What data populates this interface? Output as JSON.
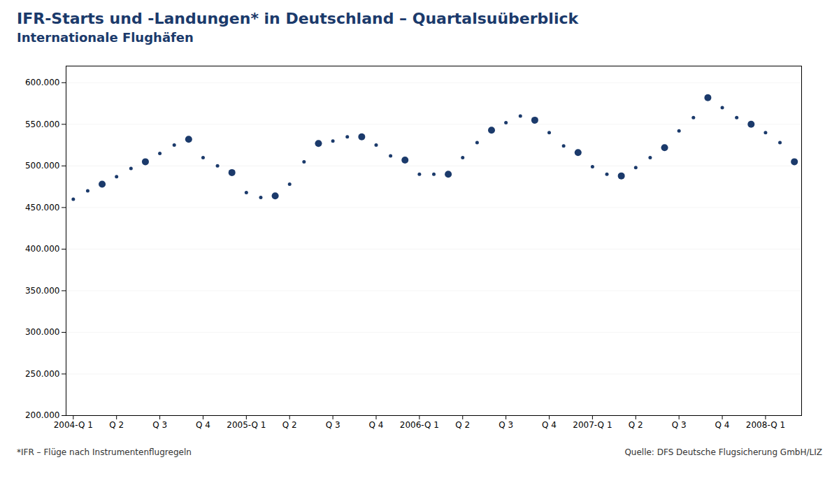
{
  "chart_data": {
    "type": "scatter",
    "title": "IFR-Starts und -Landungen*  in Deutschland – Quartalsuüberblick",
    "subtitle": "Internationale Flughäfen",
    "annotations": [
      "*IFR – Flüge nach Instrumentenflugregeln",
      "Quelle: DFS Deutsche Flugsicherung GmbH/LIZ"
    ],
    "categories": [
      "2004-Q 1",
      null,
      null,
      "Q 2",
      null,
      null,
      "Q 3",
      null,
      null,
      "Q 4",
      null,
      null,
      "2005-Q 1",
      null,
      null,
      "Q 2",
      null,
      null,
      "Q 3",
      null,
      null,
      "Q 4",
      null,
      null,
      "2006-Q 1",
      null,
      null,
      "Q 2",
      null,
      null,
      "Q 3",
      null,
      null,
      "Q 4",
      null,
      null,
      "2007-Q 1",
      null,
      null,
      "Q 2",
      null,
      null,
      "Q 3",
      null,
      null,
      "Q 4",
      null,
      null,
      "2008-Q 1",
      null,
      null
    ],
    "values": [
      460000,
      470000,
      478000,
      487000,
      497000,
      505000,
      515000,
      525000,
      532000,
      510000,
      500000,
      492000,
      468000,
      462000,
      464000,
      478000,
      505000,
      527000,
      530000,
      535000,
      535000,
      525000,
      512000,
      507000,
      490000,
      490000,
      490000,
      510000,
      528000,
      543000,
      552000,
      560000,
      555000,
      540000,
      524000,
      516000,
      499000,
      490000,
      488000,
      498000,
      510000,
      522000,
      542000,
      558000,
      582000,
      570000,
      558000,
      550000,
      540000,
      528000,
      505000
    ],
    "color": "#1b3a6b",
    "ylim": [
      200000,
      620000
    ],
    "yticks": [
      {
        "value": 200000,
        "label": "200.000"
      },
      {
        "value": 250000,
        "label": "250.000"
      },
      {
        "value": 300000,
        "label": "300.000"
      },
      {
        "value": 350000,
        "label": "350.000"
      },
      {
        "value": 400000,
        "label": "400.000"
      },
      {
        "value": 450000,
        "label": "450.000"
      },
      {
        "value": 500000,
        "label": "500.000"
      },
      {
        "value": 550000,
        "label": "550.000"
      },
      {
        "value": 600000,
        "label": "600.000"
      }
    ],
    "grid": true
  }
}
